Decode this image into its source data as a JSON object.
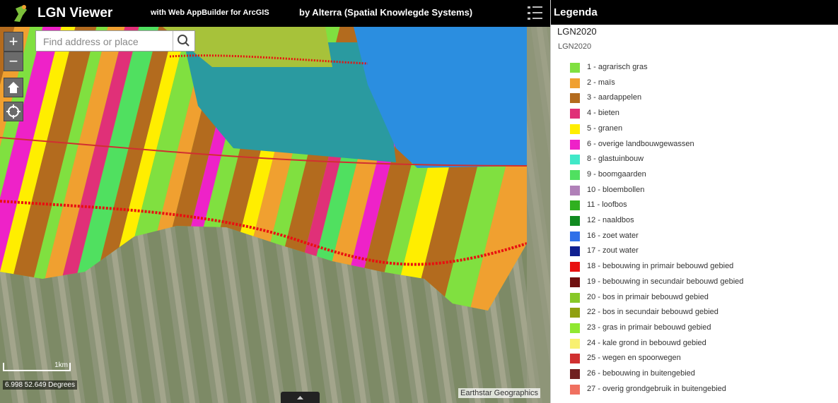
{
  "header": {
    "title": "LGN Viewer",
    "subtitle": "with Web AppBuilder for ArcGIS",
    "credit": "by Alterra (Spatial Knowlegde Systems)"
  },
  "search": {
    "placeholder": "Find address or place"
  },
  "map": {
    "scale_label": "1km",
    "coordinates": "6.998 52.649 Degrees",
    "attribution": "Earthstar Geographics"
  },
  "legend": {
    "title": "Legenda",
    "layer": "LGN2020",
    "sublayer": "LGN2020",
    "items": [
      {
        "label": "1 - agrarisch gras",
        "color": "#80e040"
      },
      {
        "label": "2 - maïs",
        "color": "#f0a030"
      },
      {
        "label": "3 - aardappelen",
        "color": "#b36b1e"
      },
      {
        "label": "4 - bieten",
        "color": "#e03078"
      },
      {
        "label": "5 - granen",
        "color": "#ffee00"
      },
      {
        "label": "6 - overige landbouwgewassen",
        "color": "#ee22c8"
      },
      {
        "label": "8 - glastuinbouw",
        "color": "#40e8c8"
      },
      {
        "label": "9 - boomgaarden",
        "color": "#50e060"
      },
      {
        "label": "10 - bloembollen",
        "color": "#b080b8"
      },
      {
        "label": "11 - loofbos",
        "color": "#30b020"
      },
      {
        "label": "12 - naaldbos",
        "color": "#108a20"
      },
      {
        "label": "16 - zoet water",
        "color": "#3070e8"
      },
      {
        "label": "17 - zout water",
        "color": "#102090"
      },
      {
        "label": "18 - bebouwing in primair bebouwd gebied",
        "color": "#e81010"
      },
      {
        "label": "19 - bebouwing in secundair bebouwd gebied",
        "color": "#701010"
      },
      {
        "label": "20 - bos in primair bebouwd gebied",
        "color": "#88c828"
      },
      {
        "label": "22 - bos in secundair bebouwd gebied",
        "color": "#90a010"
      },
      {
        "label": "23 - gras in primair bebouwd gebied",
        "color": "#90e830"
      },
      {
        "label": "24 - kale grond in bebouwd gebied",
        "color": "#f8f070"
      },
      {
        "label": "25 - wegen en spoorwegen",
        "color": "#d03030"
      },
      {
        "label": "26 - bebouwing in buitengebied",
        "color": "#702020"
      },
      {
        "label": "27 - overig grondgebruik in buitengebied",
        "color": "#f07060"
      }
    ]
  }
}
